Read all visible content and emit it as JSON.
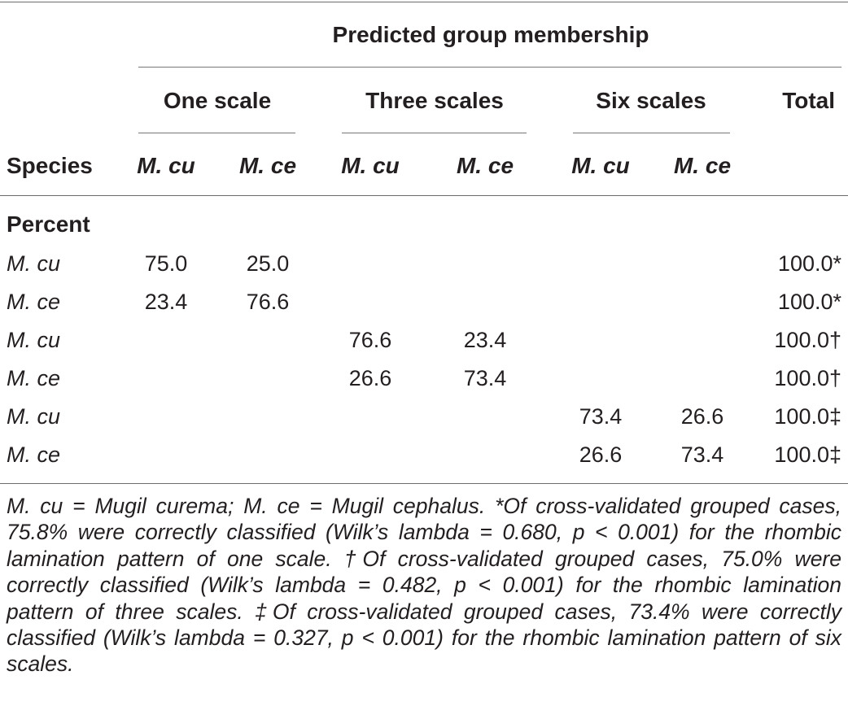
{
  "table": {
    "spanner": "Predicted group membership",
    "groups": [
      "One scale",
      "Three scales",
      "Six scales"
    ],
    "total_label": "Total",
    "species_label": "Species",
    "sub_cols": [
      "M. cu",
      "M. ce",
      "M. cu",
      "M. ce",
      "M. cu",
      "M. ce"
    ],
    "section_label": "Percent",
    "rows": [
      {
        "species": "M. cu",
        "values": [
          "75.0",
          "25.0",
          "",
          "",
          "",
          ""
        ],
        "total": "100.0*"
      },
      {
        "species": "M. ce",
        "values": [
          "23.4",
          "76.6",
          "",
          "",
          "",
          ""
        ],
        "total": "100.0*"
      },
      {
        "species": "M. cu",
        "values": [
          "",
          "",
          "76.6",
          "23.4",
          "",
          ""
        ],
        "total": "100.0†"
      },
      {
        "species": "M. ce",
        "values": [
          "",
          "",
          "26.6",
          "73.4",
          "",
          ""
        ],
        "total": "100.0†"
      },
      {
        "species": "M. cu",
        "values": [
          "",
          "",
          "",
          "",
          "73.4",
          "26.6"
        ],
        "total": "100.0‡"
      },
      {
        "species": "M. ce",
        "values": [
          "",
          "",
          "",
          "",
          "26.6",
          "73.4"
        ],
        "total": "100.0‡"
      }
    ]
  },
  "footnote": "M. cu = Mugil curema; M. ce = Mugil cephalus. *Of cross-validated grouped cases, 75.8% were correctly classified (Wilk’s lambda = 0.680, p < 0.001) for the rhombic lamination pattern of one scale. †Of cross-validated grouped cases, 75.0% were correctly classified (Wilk’s lambda = 0.482, p < 0.001) for the rhombic lamination pattern of three scales. ‡Of cross-validated grouped cases, 73.4% were correctly classified (Wilk’s lambda = 0.327, p < 0.001) for the rhombic lamination pattern of six scales."
}
